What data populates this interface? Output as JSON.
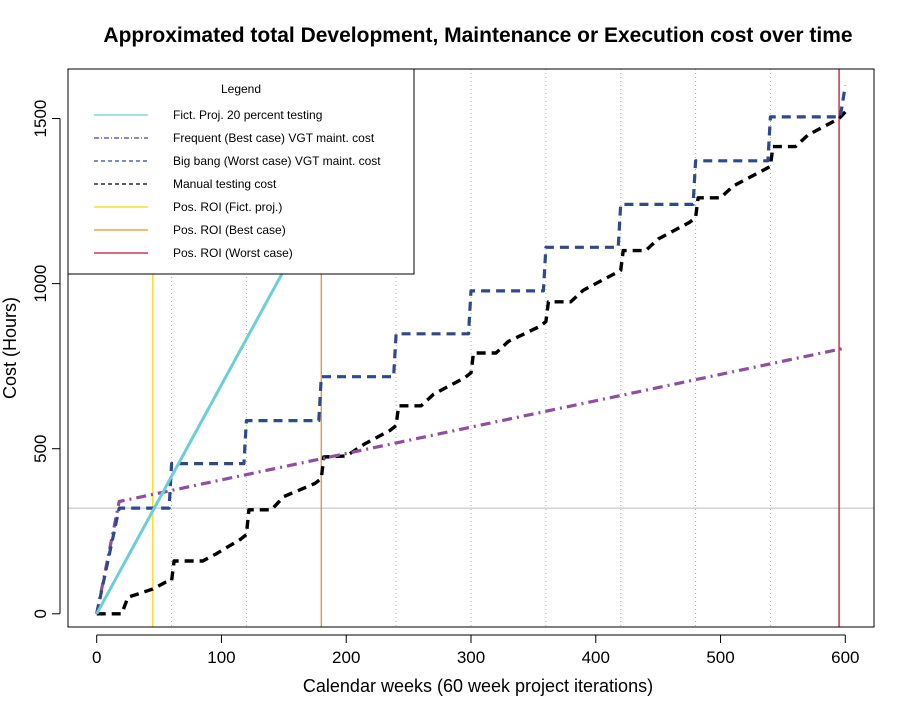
{
  "chart_data": {
    "type": "line",
    "title": "Approximated total Development, Maintenance or Execution cost over time",
    "xlabel": "Calendar weeks (60 week project iterations)",
    "ylabel": "Cost (Hours)",
    "xlim": [
      -23,
      623
    ],
    "ylim": [
      -40,
      1650
    ],
    "x_ticks": [
      0,
      100,
      200,
      300,
      400,
      500,
      600
    ],
    "y_ticks": [
      0,
      500,
      1000,
      1500
    ],
    "grid": "vertical dotted lines at x = 60, 120, 180, 240, 300, 360, 420, 480, 540",
    "vertical_gridlines": [
      60,
      120,
      180,
      240,
      300,
      360,
      420,
      480,
      540
    ],
    "horizontal_reference_line": 320,
    "legend": {
      "title": "Legend",
      "position": "top-left",
      "entries": [
        {
          "label": "Fict. Proj. 20 percent testing",
          "color": "#6ccfd6",
          "style": "solid"
        },
        {
          "label": "Frequent (Best case) VGT maint. cost",
          "color": "#5a3d8c",
          "style": "dotdash"
        },
        {
          "label": "Big bang (Worst case) VGT maint. cost",
          "color": "#2e4a8a",
          "style": "dashed"
        },
        {
          "label": "Manual testing cost",
          "color": "#000000",
          "style": "dashed"
        },
        {
          "label": "Pos. ROI (Fict. proj.)",
          "color": "#ffd700",
          "style": "solid"
        },
        {
          "label": "Pos. ROI (Best case)",
          "color": "#e69138",
          "style": "solid"
        },
        {
          "label": "Pos. ROI (Worst case)",
          "color": "#c8102e",
          "style": "solid"
        }
      ]
    },
    "series": [
      {
        "name": "Fict. Proj. 20 percent testing",
        "color": "#6ccfd6",
        "style": "solid",
        "points": [
          [
            0,
            0
          ],
          [
            150,
            1040
          ]
        ]
      },
      {
        "name": "Frequent (Best case) VGT maint. cost",
        "color": "#8e4fa0",
        "style": "dotdash",
        "points": [
          [
            0,
            0
          ],
          [
            18,
            340
          ],
          [
            600,
            805
          ]
        ]
      },
      {
        "name": "Big bang (Worst case) VGT maint. cost",
        "color": "#2e4a8a",
        "style": "dashed",
        "points": [
          [
            0,
            0
          ],
          [
            18,
            320
          ],
          [
            58,
            320
          ],
          [
            60,
            455
          ],
          [
            118,
            455
          ],
          [
            120,
            585
          ],
          [
            178,
            585
          ],
          [
            180,
            718
          ],
          [
            238,
            718
          ],
          [
            240,
            848
          ],
          [
            298,
            848
          ],
          [
            300,
            978
          ],
          [
            358,
            978
          ],
          [
            360,
            1110
          ],
          [
            418,
            1110
          ],
          [
            420,
            1240
          ],
          [
            478,
            1240
          ],
          [
            480,
            1372
          ],
          [
            538,
            1372
          ],
          [
            540,
            1505
          ],
          [
            596,
            1505
          ],
          [
            600,
            1600
          ]
        ]
      },
      {
        "name": "Manual testing cost",
        "color": "#000000",
        "style": "dashed",
        "points": [
          [
            0,
            0
          ],
          [
            20,
            0
          ],
          [
            25,
            50
          ],
          [
            45,
            75
          ],
          [
            55,
            95
          ],
          [
            60,
            100
          ],
          [
            62,
            160
          ],
          [
            85,
            160
          ],
          [
            95,
            180
          ],
          [
            115,
            225
          ],
          [
            120,
            240
          ],
          [
            122,
            315
          ],
          [
            140,
            315
          ],
          [
            150,
            355
          ],
          [
            175,
            395
          ],
          [
            180,
            410
          ],
          [
            182,
            475
          ],
          [
            200,
            478
          ],
          [
            215,
            515
          ],
          [
            235,
            555
          ],
          [
            240,
            570
          ],
          [
            242,
            630
          ],
          [
            260,
            630
          ],
          [
            270,
            665
          ],
          [
            295,
            715
          ],
          [
            300,
            730
          ],
          [
            302,
            790
          ],
          [
            320,
            790
          ],
          [
            330,
            825
          ],
          [
            355,
            870
          ],
          [
            360,
            885
          ],
          [
            362,
            945
          ],
          [
            380,
            945
          ],
          [
            390,
            980
          ],
          [
            415,
            1030
          ],
          [
            420,
            1040
          ],
          [
            422,
            1100
          ],
          [
            440,
            1100
          ],
          [
            450,
            1135
          ],
          [
            475,
            1185
          ],
          [
            480,
            1200
          ],
          [
            482,
            1260
          ],
          [
            500,
            1260
          ],
          [
            510,
            1295
          ],
          [
            535,
            1345
          ],
          [
            540,
            1355
          ],
          [
            542,
            1415
          ],
          [
            560,
            1415
          ],
          [
            570,
            1450
          ],
          [
            595,
            1500
          ],
          [
            600,
            1520
          ]
        ]
      }
    ],
    "roi_lines": [
      {
        "name": "Pos. ROI (Fict. proj.)",
        "x": 45,
        "color": "#ffd700"
      },
      {
        "name": "Pos. ROI (Best case)",
        "x": 180,
        "color": "#e69138"
      },
      {
        "name": "Pos. ROI (Worst case)",
        "x": 595,
        "color": "#c8102e"
      }
    ]
  }
}
